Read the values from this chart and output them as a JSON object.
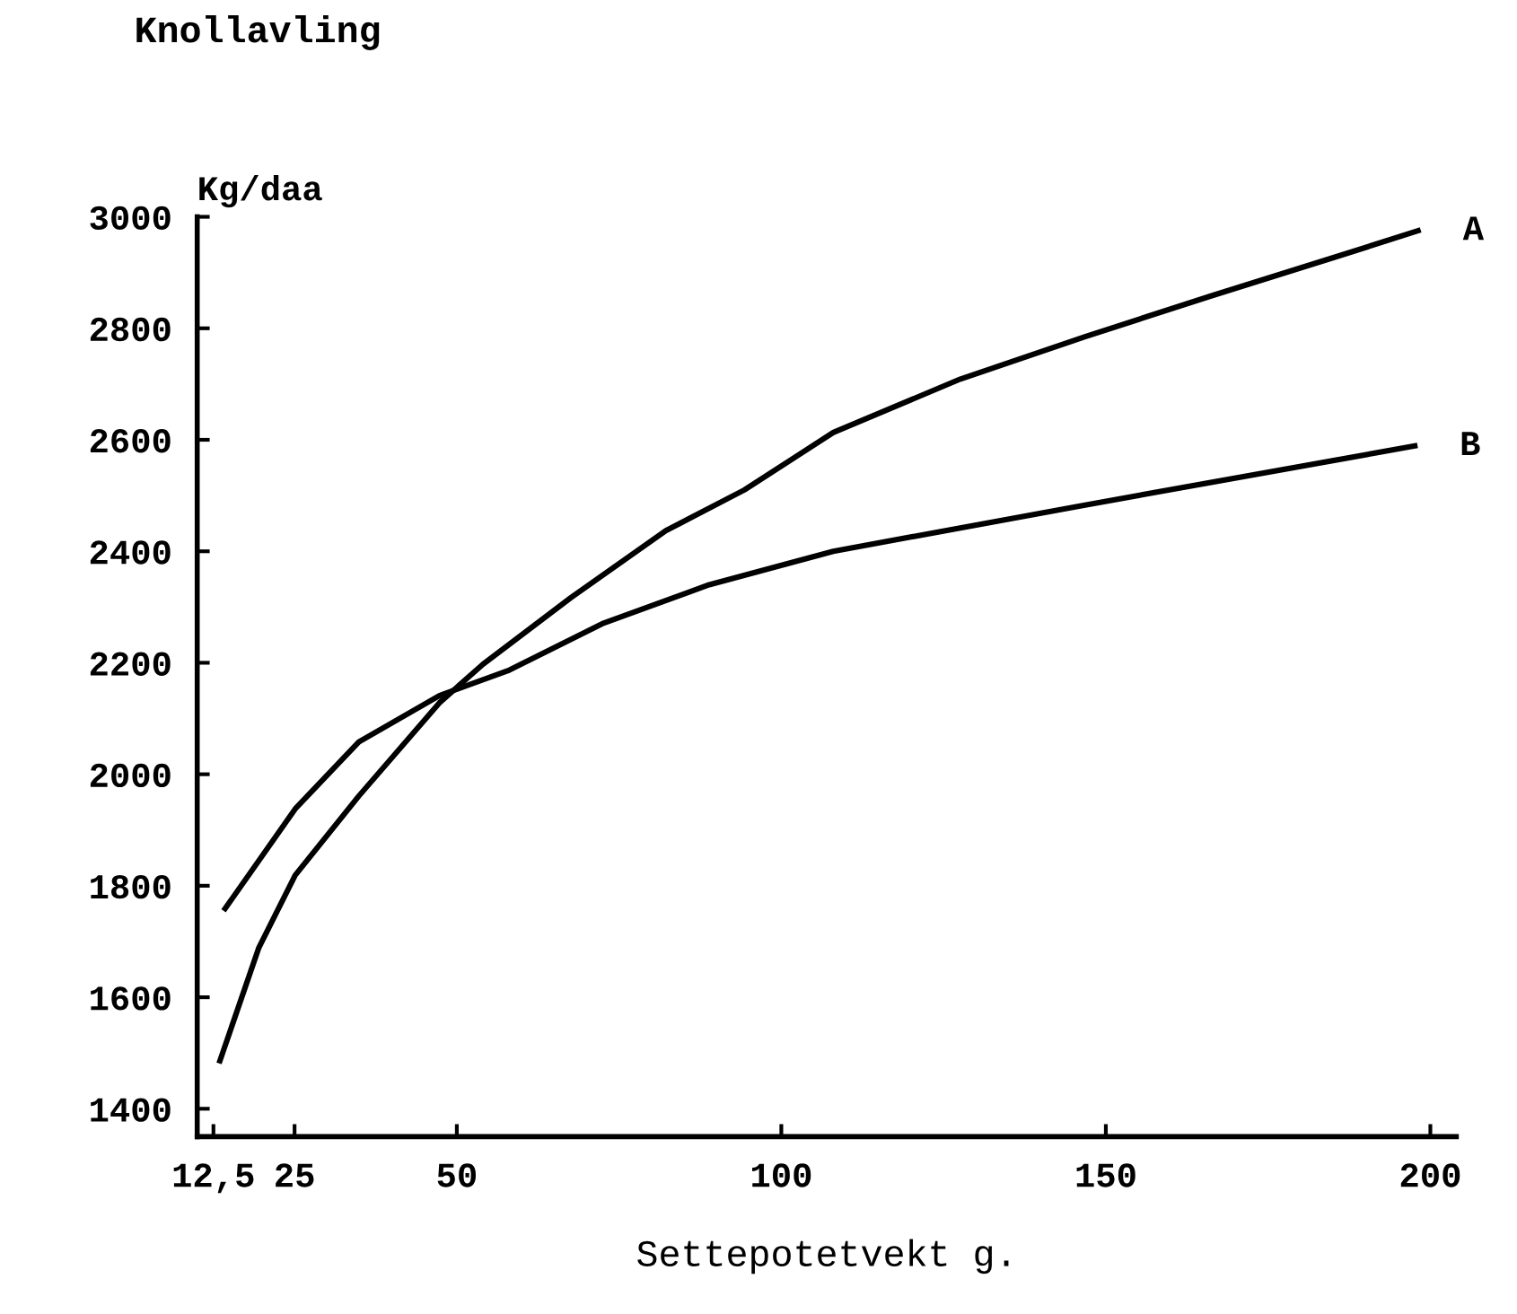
{
  "chart_data": {
    "type": "line",
    "title": "Knollavling",
    "xlabel": "Settepotetvekt g.",
    "ylabel": "Kg/daa",
    "xlim": [
      10,
      204
    ],
    "ylim": [
      1350,
      3000
    ],
    "xticks": [
      {
        "value": 12.5,
        "label": "12,5"
      },
      25,
      50,
      100,
      150,
      200
    ],
    "yticks": [
      1400,
      1600,
      1800,
      2000,
      2200,
      2400,
      2600,
      2800,
      3000
    ],
    "grid": false,
    "legend": false,
    "marker": "none",
    "line_style": "solid",
    "series": [
      {
        "color": "#000000",
        "x": [
          13.5,
          19.5,
          25.1,
          34.9,
          47.3,
          54,
          67.6,
          82.2,
          94.3,
          108,
          127.6,
          146.8,
          166.2,
          185.4,
          198.1
        ],
        "values": [
          1486,
          1689,
          1819,
          1961,
          2128,
          2197,
          2317,
          2437,
          2510,
          2613,
          2709,
          2785,
          2858,
          2928,
          2975
        ]
      },
      {
        "color": "#000000",
        "x": [
          14.3,
          25.1,
          34.9,
          47.3,
          58.1,
          72.4,
          88.9,
          108,
          146.8,
          197.6
        ],
        "values": [
          1759,
          1938,
          2058,
          2141,
          2187,
          2270,
          2340,
          2400,
          2483,
          2589
        ]
      }
    ],
    "annotations": [
      {
        "text": "A",
        "x": 198.1,
        "y": 2975
      },
      {
        "text": "B",
        "x": 197.6,
        "y": 2589
      }
    ]
  }
}
